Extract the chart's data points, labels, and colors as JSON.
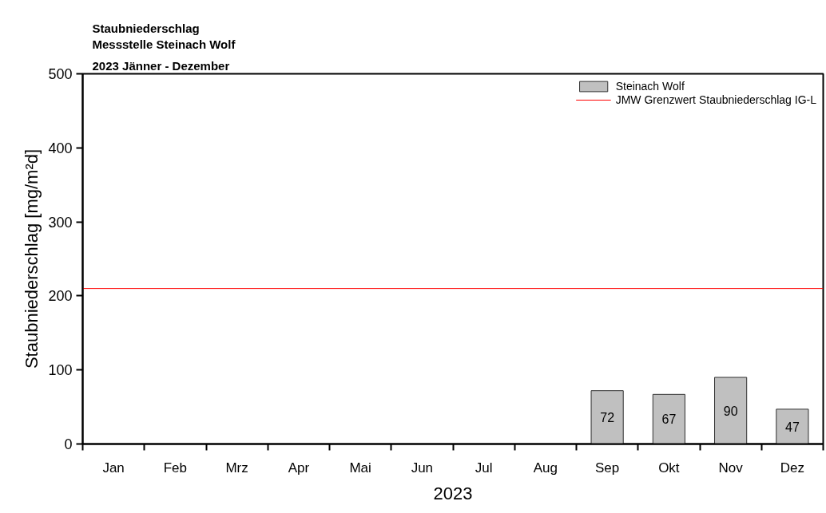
{
  "chart_data": {
    "type": "bar",
    "title": "Staubniederschlag",
    "subtitle": "Messstelle Steinach Wolf\n2023 Jänner - Dezember",
    "xlabel": "2023",
    "ylabel": "Staubniederschlag [mg/m²d]",
    "categories": [
      "Jan",
      "Feb",
      "Mrz",
      "Apr",
      "Mai",
      "Jun",
      "Jul",
      "Aug",
      "Sep",
      "Okt",
      "Nov",
      "Dez"
    ],
    "series": [
      {
        "name": "Steinach Wolf",
        "color": "#c0c0c0",
        "values": [
          null,
          null,
          null,
          null,
          null,
          null,
          null,
          null,
          72,
          67,
          90,
          47
        ]
      }
    ],
    "ylim": [
      0,
      500
    ],
    "yticks": [
      0,
      100,
      200,
      300,
      400,
      500
    ],
    "ref_lines": [
      {
        "axis": "y",
        "value": 210,
        "label": "JMW Grenzwert Staubniederschlag IG-L",
        "color": "#ff0000"
      }
    ],
    "data_labels": true,
    "legend": "top right"
  }
}
